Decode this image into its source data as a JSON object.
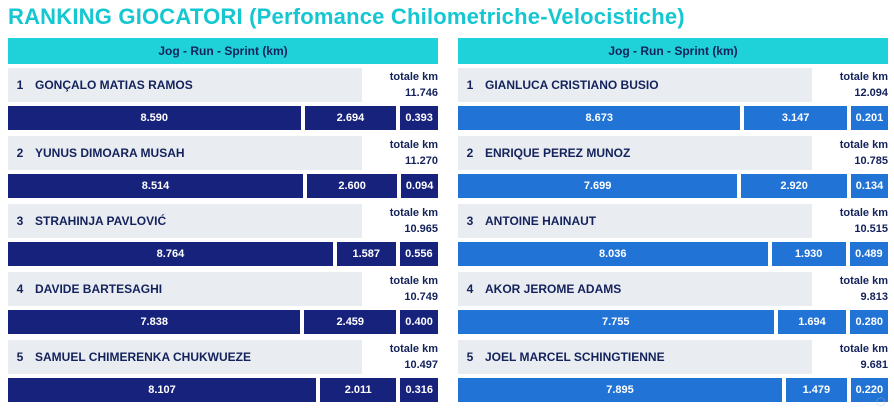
{
  "title": "RANKING GIOCATORI (Perfomance Chilometriche-Velocistiche)",
  "panels": [
    {
      "header": "Jog - Run - Sprint (km)",
      "players": [
        {
          "rank": "1",
          "name": "GONÇALO MATIAS RAMOS",
          "total_label": "totale km",
          "total": "11.746",
          "jog": "8.590",
          "run": "2.694",
          "sprint": "0.393",
          "jog_value": 8.59,
          "run_value": 2.694,
          "sprint_value": 0.393
        },
        {
          "rank": "2",
          "name": "YUNUS DIMOARA MUSAH",
          "total_label": "totale km",
          "total": "11.270",
          "jog": "8.514",
          "run": "2.600",
          "sprint": "0.094",
          "jog_value": 8.514,
          "run_value": 2.6,
          "sprint_value": 0.094
        },
        {
          "rank": "3",
          "name": "STRAHINJA PAVLOVIĆ",
          "total_label": "totale km",
          "total": "10.965",
          "jog": "8.764",
          "run": "1.587",
          "sprint": "0.556",
          "jog_value": 8.764,
          "run_value": 1.587,
          "sprint_value": 0.556
        },
        {
          "rank": "4",
          "name": "DAVIDE BARTESAGHI",
          "total_label": "totale km",
          "total": "10.749",
          "jog": "7.838",
          "run": "2.459",
          "sprint": "0.400",
          "jog_value": 7.838,
          "run_value": 2.459,
          "sprint_value": 0.4
        },
        {
          "rank": "5",
          "name": "SAMUEL CHIMERENKA CHUKWUEZE",
          "total_label": "totale km",
          "total": "10.497",
          "jog": "8.107",
          "run": "2.011",
          "sprint": "0.316",
          "jog_value": 8.107,
          "run_value": 2.011,
          "sprint_value": 0.316
        }
      ]
    },
    {
      "header": "Jog - Run - Sprint (km)",
      "players": [
        {
          "rank": "1",
          "name": "GIANLUCA CRISTIANO BUSIO",
          "total_label": "totale km",
          "total": "12.094",
          "jog": "8.673",
          "run": "3.147",
          "sprint": "0.201",
          "jog_value": 8.673,
          "run_value": 3.147,
          "sprint_value": 0.201
        },
        {
          "rank": "2",
          "name": "ENRIQUE PEREZ MUNOZ",
          "total_label": "totale km",
          "total": "10.785",
          "jog": "7.699",
          "run": "2.920",
          "sprint": "0.134",
          "jog_value": 7.699,
          "run_value": 2.92,
          "sprint_value": 0.134
        },
        {
          "rank": "3",
          "name": "ANTOINE HAINAUT",
          "total_label": "totale km",
          "total": "10.515",
          "jog": "8.036",
          "run": "1.930",
          "sprint": "0.489",
          "jog_value": 8.036,
          "run_value": 1.93,
          "sprint_value": 0.489
        },
        {
          "rank": "4",
          "name": "AKOR JEROME ADAMS",
          "total_label": "totale km",
          "total": "9.813",
          "jog": "7.755",
          "run": "1.694",
          "sprint": "0.280",
          "jog_value": 7.755,
          "run_value": 1.694,
          "sprint_value": 0.28
        },
        {
          "rank": "5",
          "name": "JOEL MARCEL SCHINGTIENNE",
          "total_label": "totale km",
          "total": "9.681",
          "jog": "7.895",
          "run": "1.479",
          "sprint": "0.220",
          "jog_value": 7.895,
          "run_value": 1.479,
          "sprint_value": 0.22
        }
      ]
    }
  ],
  "colors": {
    "title": "#14c7d1",
    "header_bg": "#1fd1d9",
    "left_bar": "#17227c",
    "right_bar": "#2173d6",
    "name_bg": "#e9edf2",
    "text_dark": "#14225c"
  }
}
